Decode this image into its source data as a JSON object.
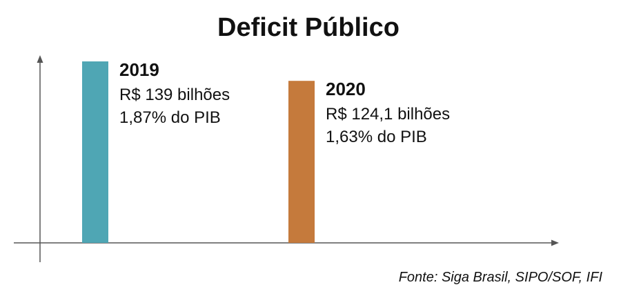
{
  "chart_data": {
    "type": "bar",
    "title": "Deficit Público",
    "categories": [
      "2019",
      "2020"
    ],
    "values": [
      139,
      124.1
    ],
    "unit": "R$ bilhões",
    "ylim": [
      0,
      139
    ],
    "grid": false,
    "legend": "none",
    "bars": [
      {
        "year": "2019",
        "value_label": "R$ 139 bilhões",
        "pib_label": "1,87% do PIB",
        "color": "#4fa6b4"
      },
      {
        "year": "2020",
        "value_label": "R$ 124,1 bilhões",
        "pib_label": "1,63% do PIB",
        "color": "#c57a3c"
      }
    ],
    "source": "Fonte:  Siga Brasil, SIPO/SOF, IFI",
    "axis_color": "#555555"
  }
}
